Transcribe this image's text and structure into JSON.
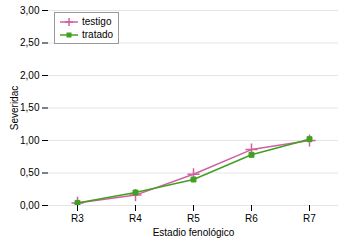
{
  "chart_data": {
    "type": "line",
    "xlabel": "Estadio fenológico",
    "ylabel": "Severidac",
    "categories": [
      "R3",
      "R4",
      "R5",
      "R6",
      "R7"
    ],
    "series": [
      {
        "name": "testigo",
        "color": "#d060a0",
        "marker": "plus",
        "values": [
          0.04,
          0.16,
          0.48,
          0.86,
          1.0
        ]
      },
      {
        "name": "tratado",
        "color": "#40a020",
        "marker": "square",
        "values": [
          0.04,
          0.2,
          0.4,
          0.78,
          1.02
        ]
      }
    ],
    "ylim": [
      0.0,
      3.0
    ],
    "yticks": [
      {
        "value": 0.0,
        "label": "0,00"
      },
      {
        "value": 0.5,
        "label": "0,50"
      },
      {
        "value": 1.0,
        "label": "1,00"
      },
      {
        "value": 1.5,
        "label": "1,50"
      },
      {
        "value": 2.0,
        "label": "2,00"
      },
      {
        "value": 2.5,
        "label": "2,50"
      },
      {
        "value": 3.0,
        "label": "3,00"
      }
    ],
    "grid": true,
    "legend": "upper left"
  }
}
